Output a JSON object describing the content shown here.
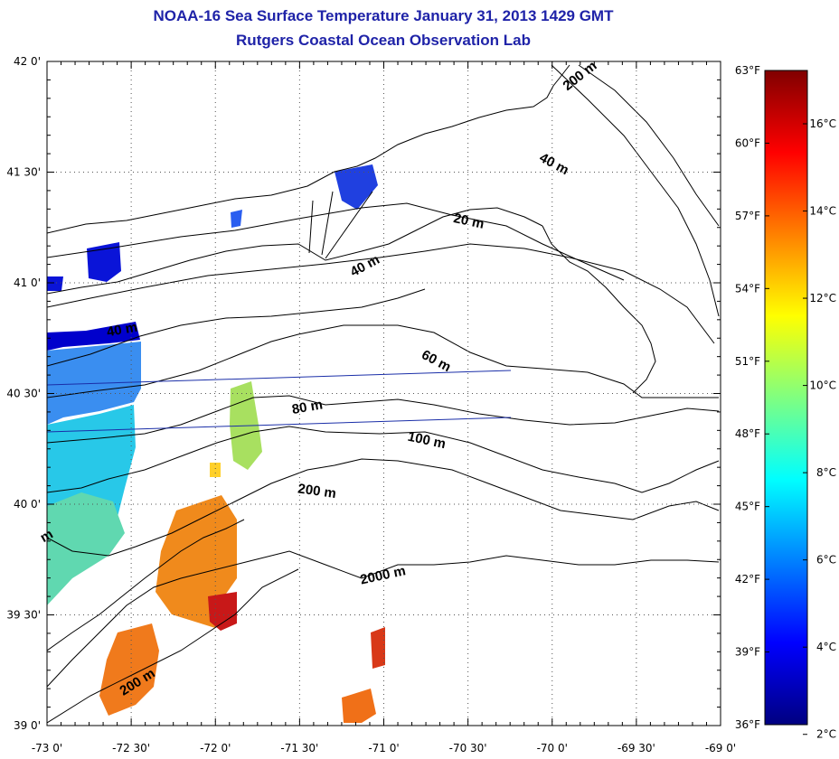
{
  "title": {
    "line1": "NOAA-16 Sea Surface Temperature January 31, 2013 1429 GMT",
    "line2": "Rutgers Coastal Ocean Observation Lab"
  },
  "map": {
    "lon_range": [
      -73,
      -69
    ],
    "lat_range": [
      39,
      42
    ],
    "lon_ticks": [
      "-73 0'",
      "-72 30'",
      "-72 0'",
      "-71 30'",
      "-71 0'",
      "-70 30'",
      "-70 0'",
      "-69 30'",
      "-69 0'"
    ],
    "lat_ticks": [
      "39 0'",
      "39 30'",
      "40 0'",
      "40 30'",
      "41 0'",
      "41 30'",
      "42 0'"
    ],
    "grid": true,
    "contour_labels": [
      {
        "text": "200 m",
        "lon": -69.82,
        "lat": 41.92,
        "rot": -38
      },
      {
        "text": "40 m",
        "lon": -70.0,
        "lat": 41.52,
        "rot": 28
      },
      {
        "text": "20 m",
        "lon": -70.5,
        "lat": 41.26,
        "rot": 12
      },
      {
        "text": "40 m",
        "lon": -71.1,
        "lat": 41.06,
        "rot": -28
      },
      {
        "text": "40 m",
        "lon": -72.55,
        "lat": 40.77,
        "rot": -10
      },
      {
        "text": "60 m",
        "lon": -70.7,
        "lat": 40.63,
        "rot": 28
      },
      {
        "text": "80 m",
        "lon": -71.45,
        "lat": 40.42,
        "rot": -10
      },
      {
        "text": "100 m",
        "lon": -70.75,
        "lat": 40.27,
        "rot": 12
      },
      {
        "text": "200 m",
        "lon": -71.4,
        "lat": 40.04,
        "rot": 8
      },
      {
        "text": "2000 m",
        "lon": -71.0,
        "lat": 39.66,
        "rot": -12
      },
      {
        "text": "200 m",
        "lon": -72.45,
        "lat": 39.18,
        "rot": -32
      },
      {
        "text": "m",
        "lon": -72.99,
        "lat": 39.84,
        "rot": -30
      }
    ]
  },
  "colorbar": {
    "f_ticks": [
      "63°F",
      "60°F",
      "57°F",
      "54°F",
      "51°F",
      "48°F",
      "45°F",
      "42°F",
      "39°F",
      "36°F"
    ],
    "c_ticks": [
      "16°C",
      "14°C",
      "12°C",
      "10°C",
      "8°C",
      "6°C",
      "4°C",
      "2°C"
    ],
    "f_range": [
      36,
      63
    ],
    "colors": [
      "#000080",
      "#0000ff",
      "#0080ff",
      "#00ffff",
      "#80ff80",
      "#ffff00",
      "#ff8000",
      "#ff0000",
      "#800000"
    ]
  }
}
